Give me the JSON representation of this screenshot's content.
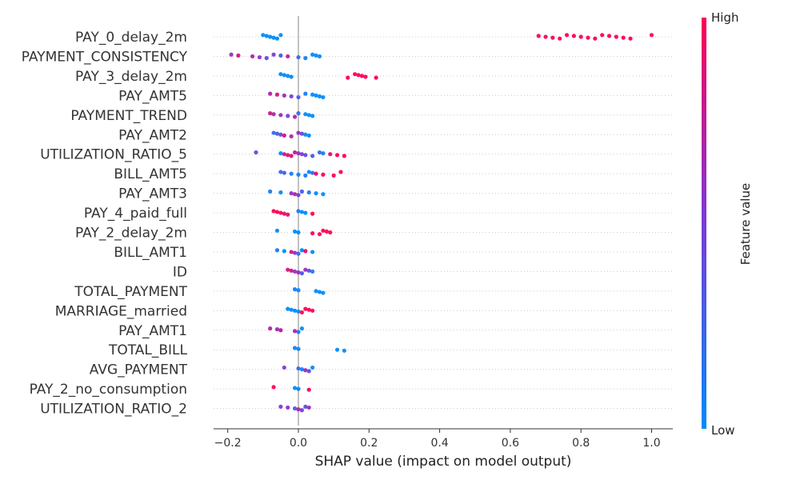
{
  "chart_data": {
    "type": "scatter",
    "subtype": "shap-beeswarm",
    "title": "",
    "xlabel": "SHAP value (impact on model output)",
    "xlim": [
      -0.24,
      1.06
    ],
    "xticks": [
      -0.2,
      0.0,
      0.2,
      0.4,
      0.6,
      0.8,
      1.0
    ],
    "xtick_labels": [
      "−0.2",
      "0.0",
      "0.2",
      "0.4",
      "0.6",
      "0.8",
      "1.0"
    ],
    "grid": false,
    "features": [
      {
        "name": "PAY_0_delay_2m",
        "points": [
          [
            -0.1,
            0.0
          ],
          [
            -0.09,
            0.0
          ],
          [
            -0.08,
            0.0
          ],
          [
            -0.07,
            0.0
          ],
          [
            -0.06,
            0.0
          ],
          [
            -0.05,
            0.0
          ],
          [
            0.68,
            1.0
          ],
          [
            0.7,
            1.0
          ],
          [
            0.72,
            1.0
          ],
          [
            0.74,
            1.0
          ],
          [
            0.76,
            1.0
          ],
          [
            0.78,
            1.0
          ],
          [
            0.8,
            1.0
          ],
          [
            0.82,
            1.0
          ],
          [
            0.84,
            1.0
          ],
          [
            0.86,
            1.0
          ],
          [
            0.88,
            1.0
          ],
          [
            0.9,
            1.0
          ],
          [
            0.92,
            1.0
          ],
          [
            0.94,
            1.0
          ],
          [
            1.0,
            1.0
          ]
        ]
      },
      {
        "name": "PAYMENT_CONSISTENCY",
        "points": [
          [
            -0.19,
            0.6
          ],
          [
            -0.17,
            0.8
          ],
          [
            -0.13,
            0.7
          ],
          [
            -0.11,
            0.6
          ],
          [
            -0.09,
            0.4
          ],
          [
            -0.07,
            0.5
          ],
          [
            -0.05,
            0.3
          ],
          [
            -0.03,
            0.8
          ],
          [
            0.0,
            0.2
          ],
          [
            0.02,
            0.1
          ],
          [
            0.04,
            0.0
          ],
          [
            0.05,
            0.0
          ],
          [
            0.06,
            0.0
          ]
        ]
      },
      {
        "name": "PAY_3_delay_2m",
        "points": [
          [
            -0.05,
            0.0
          ],
          [
            -0.04,
            0.0
          ],
          [
            -0.03,
            0.0
          ],
          [
            -0.02,
            0.0
          ],
          [
            0.14,
            1.0
          ],
          [
            0.16,
            1.0
          ],
          [
            0.17,
            1.0
          ],
          [
            0.18,
            1.0
          ],
          [
            0.19,
            1.0
          ],
          [
            0.22,
            1.0
          ]
        ]
      },
      {
        "name": "PAY_AMT5",
        "points": [
          [
            -0.08,
            0.7
          ],
          [
            -0.06,
            0.8
          ],
          [
            -0.04,
            0.6
          ],
          [
            -0.02,
            0.5
          ],
          [
            0.0,
            0.3
          ],
          [
            0.02,
            0.1
          ],
          [
            0.04,
            0.0
          ],
          [
            0.05,
            0.0
          ],
          [
            0.06,
            0.0
          ],
          [
            0.07,
            0.0
          ]
        ]
      },
      {
        "name": "PAYMENT_TREND",
        "points": [
          [
            -0.08,
            0.8
          ],
          [
            -0.07,
            0.7
          ],
          [
            -0.05,
            0.6
          ],
          [
            -0.03,
            0.5
          ],
          [
            -0.01,
            0.7
          ],
          [
            0.0,
            0.2
          ],
          [
            0.02,
            0.0
          ],
          [
            0.03,
            0.0
          ],
          [
            0.04,
            0.0
          ]
        ]
      },
      {
        "name": "PAY_AMT2",
        "points": [
          [
            -0.07,
            0.2
          ],
          [
            -0.06,
            0.3
          ],
          [
            -0.05,
            0.4
          ],
          [
            -0.04,
            0.8
          ],
          [
            -0.02,
            0.7
          ],
          [
            0.0,
            0.6
          ],
          [
            0.01,
            0.4
          ],
          [
            0.02,
            0.0
          ],
          [
            0.03,
            0.0
          ]
        ]
      },
      {
        "name": "UTILIZATION_RATIO_5",
        "points": [
          [
            -0.12,
            0.4
          ],
          [
            -0.05,
            0.0
          ],
          [
            -0.04,
            0.8
          ],
          [
            -0.03,
            0.85
          ],
          [
            -0.02,
            0.9
          ],
          [
            -0.01,
            0.75
          ],
          [
            0.0,
            0.6
          ],
          [
            0.01,
            0.5
          ],
          [
            0.02,
            0.4
          ],
          [
            0.04,
            0.3
          ],
          [
            0.06,
            0.2
          ],
          [
            0.07,
            0.1
          ],
          [
            0.09,
            0.9
          ],
          [
            0.11,
            1.0
          ],
          [
            0.13,
            1.0
          ]
        ]
      },
      {
        "name": "BILL_AMT5",
        "points": [
          [
            -0.05,
            0.2
          ],
          [
            -0.04,
            0.3
          ],
          [
            -0.02,
            0.1
          ],
          [
            0.0,
            0.0
          ],
          [
            0.02,
            0.1
          ],
          [
            0.03,
            0.0
          ],
          [
            0.04,
            0.2
          ],
          [
            0.05,
            0.9
          ],
          [
            0.07,
            1.0
          ],
          [
            0.1,
            1.0
          ],
          [
            0.12,
            1.0
          ]
        ]
      },
      {
        "name": "PAY_AMT3",
        "points": [
          [
            -0.08,
            0.1
          ],
          [
            -0.05,
            0.0
          ],
          [
            -0.02,
            0.6
          ],
          [
            -0.01,
            0.7
          ],
          [
            0.0,
            0.5
          ],
          [
            0.01,
            0.3
          ],
          [
            0.03,
            0.1
          ],
          [
            0.05,
            0.0
          ],
          [
            0.07,
            0.0
          ]
        ]
      },
      {
        "name": "PAY_4_paid_full",
        "points": [
          [
            -0.07,
            1.0
          ],
          [
            -0.06,
            1.0
          ],
          [
            -0.05,
            1.0
          ],
          [
            -0.04,
            0.9
          ],
          [
            -0.03,
            0.9
          ],
          [
            0.0,
            0.1
          ],
          [
            0.01,
            0.0
          ],
          [
            0.02,
            0.0
          ],
          [
            0.04,
            1.0
          ]
        ]
      },
      {
        "name": "PAY_2_delay_2m",
        "points": [
          [
            -0.06,
            0.0
          ],
          [
            -0.01,
            0.0
          ],
          [
            0.0,
            0.0
          ],
          [
            0.04,
            1.0
          ],
          [
            0.06,
            1.0
          ],
          [
            0.07,
            1.0
          ],
          [
            0.08,
            1.0
          ],
          [
            0.09,
            1.0
          ]
        ]
      },
      {
        "name": "BILL_AMT1",
        "points": [
          [
            -0.06,
            0.1
          ],
          [
            -0.04,
            0.0
          ],
          [
            -0.02,
            0.8
          ],
          [
            -0.01,
            0.6
          ],
          [
            0.0,
            0.2
          ],
          [
            0.01,
            0.0
          ],
          [
            0.02,
            0.9
          ],
          [
            0.04,
            0.0
          ]
        ]
      },
      {
        "name": "ID",
        "points": [
          [
            -0.03,
            0.8
          ],
          [
            -0.02,
            0.9
          ],
          [
            -0.01,
            0.5
          ],
          [
            0.0,
            0.7
          ],
          [
            0.01,
            0.3
          ],
          [
            0.02,
            0.6
          ],
          [
            0.03,
            0.4
          ],
          [
            0.04,
            0.1
          ]
        ]
      },
      {
        "name": "TOTAL_PAYMENT",
        "points": [
          [
            -0.01,
            0.1
          ],
          [
            0.0,
            0.0
          ],
          [
            0.05,
            0.0
          ],
          [
            0.06,
            0.0
          ],
          [
            0.07,
            0.0
          ]
        ]
      },
      {
        "name": "MARRIAGE_married",
        "points": [
          [
            -0.03,
            0.0
          ],
          [
            -0.02,
            0.0
          ],
          [
            -0.01,
            0.0
          ],
          [
            0.0,
            0.0
          ],
          [
            0.01,
            1.0
          ],
          [
            0.02,
            1.0
          ],
          [
            0.03,
            1.0
          ],
          [
            0.04,
            1.0
          ]
        ]
      },
      {
        "name": "PAY_AMT1",
        "points": [
          [
            -0.08,
            0.7
          ],
          [
            -0.06,
            0.6
          ],
          [
            -0.05,
            0.8
          ],
          [
            -0.01,
            0.7
          ],
          [
            0.0,
            0.1
          ],
          [
            0.01,
            0.0
          ]
        ]
      },
      {
        "name": "TOTAL_BILL",
        "points": [
          [
            -0.01,
            0.1
          ],
          [
            0.0,
            0.0
          ],
          [
            0.11,
            0.0
          ],
          [
            0.13,
            0.0
          ]
        ]
      },
      {
        "name": "AVG_PAYMENT",
        "points": [
          [
            -0.04,
            0.5
          ],
          [
            0.0,
            0.2
          ],
          [
            0.01,
            0.1
          ],
          [
            0.02,
            0.6
          ],
          [
            0.03,
            0.4
          ],
          [
            0.04,
            0.0
          ]
        ]
      },
      {
        "name": "PAY_2_no_consumption",
        "points": [
          [
            -0.07,
            1.0
          ],
          [
            -0.01,
            0.0
          ],
          [
            0.0,
            0.0
          ],
          [
            0.03,
            1.0
          ]
        ]
      },
      {
        "name": "UTILIZATION_RATIO_2",
        "points": [
          [
            -0.05,
            0.5
          ],
          [
            -0.03,
            0.6
          ],
          [
            -0.01,
            0.3
          ],
          [
            0.0,
            0.7
          ],
          [
            0.01,
            0.5
          ],
          [
            0.02,
            0.4
          ],
          [
            0.03,
            0.6
          ]
        ]
      }
    ],
    "colorbar": {
      "label": "Feature value",
      "high_label": "High",
      "low_label": "Low",
      "low_color": "#008bfb",
      "high_color": "#ff0052"
    }
  }
}
